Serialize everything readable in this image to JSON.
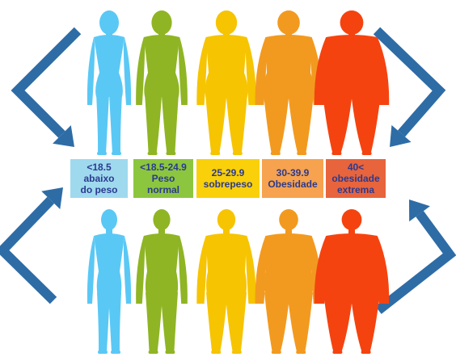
{
  "colors": {
    "arrow": "#2e6ca6",
    "label_text": "#2b3a8f"
  },
  "categories": [
    {
      "range": "<18.5",
      "lines": [
        "abaixo",
        "do peso"
      ],
      "figure_color": "#5ac8f5",
      "box_color": "#9fd9ee",
      "build": 0
    },
    {
      "range": "<18.5-24.9",
      "lines": [
        "Peso",
        "normal"
      ],
      "figure_color": "#8fb524",
      "box_color": "#8cc63f",
      "build": 1
    },
    {
      "range": "25-29.9",
      "lines": [
        "",
        "sobrepeso"
      ],
      "figure_color": "#f6c400",
      "box_color": "#f9d00a",
      "build": 2
    },
    {
      "range": "30-39.9",
      "lines": [
        "",
        "Obesidade"
      ],
      "figure_color": "#f29a1f",
      "box_color": "#f6a24e",
      "build": 3
    },
    {
      "range": "40<",
      "lines": [
        "obesidade",
        "extrema"
      ],
      "figure_color": "#f5430f",
      "box_color": "#e8643c",
      "build": 4
    }
  ]
}
